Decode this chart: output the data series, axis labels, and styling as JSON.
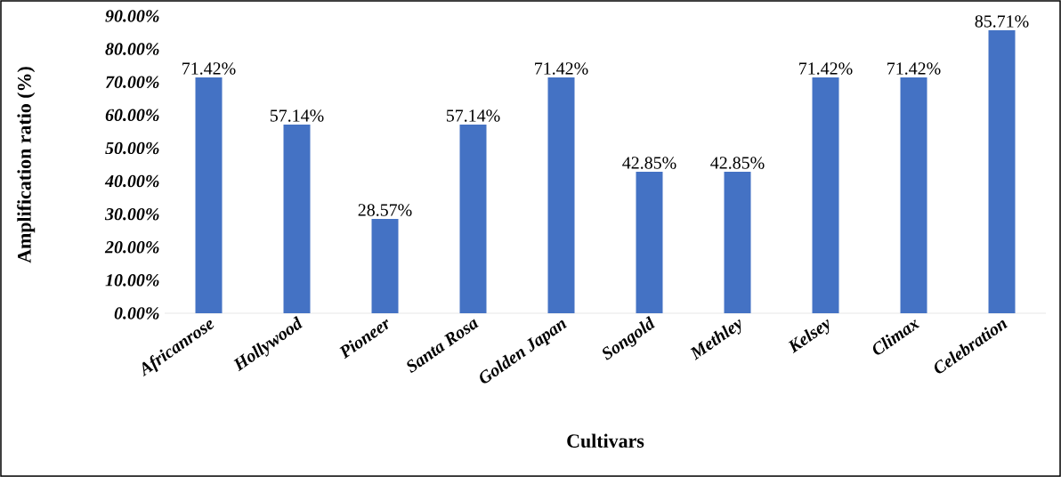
{
  "chart_data": {
    "type": "bar",
    "xlabel": "Cultivars",
    "ylabel": "Amplification ratio (%)",
    "categories": [
      "Africanrose",
      "Hollywood",
      "Pioneer",
      "Santa Rosa",
      "Golden Japan",
      "Songold",
      "Methley",
      "Kelsey",
      "Climax",
      "Celebration"
    ],
    "values": [
      71.42,
      57.14,
      28.57,
      57.14,
      71.42,
      42.85,
      42.85,
      71.42,
      71.42,
      85.71
    ],
    "value_labels": [
      "71.42%",
      "57.14%",
      "28.57%",
      "57.14%",
      "71.42%",
      "42.85%",
      "42.85%",
      "71.42%",
      "71.42%",
      "85.71%"
    ],
    "color": "#4472c4",
    "ylim": [
      0,
      90
    ],
    "grid": false,
    "yticks": [
      {
        "value": 0,
        "label": "0.00%"
      },
      {
        "value": 10,
        "label": "10.00%"
      },
      {
        "value": 20,
        "label": "20.00%"
      },
      {
        "value": 30,
        "label": "30.00%"
      },
      {
        "value": 40,
        "label": "40.00%"
      },
      {
        "value": 50,
        "label": "50.00%"
      },
      {
        "value": 60,
        "label": "60.00%"
      },
      {
        "value": 70,
        "label": "70.00%"
      },
      {
        "value": 80,
        "label": "80.00%"
      },
      {
        "value": 90,
        "label": "90.00%"
      }
    ]
  }
}
